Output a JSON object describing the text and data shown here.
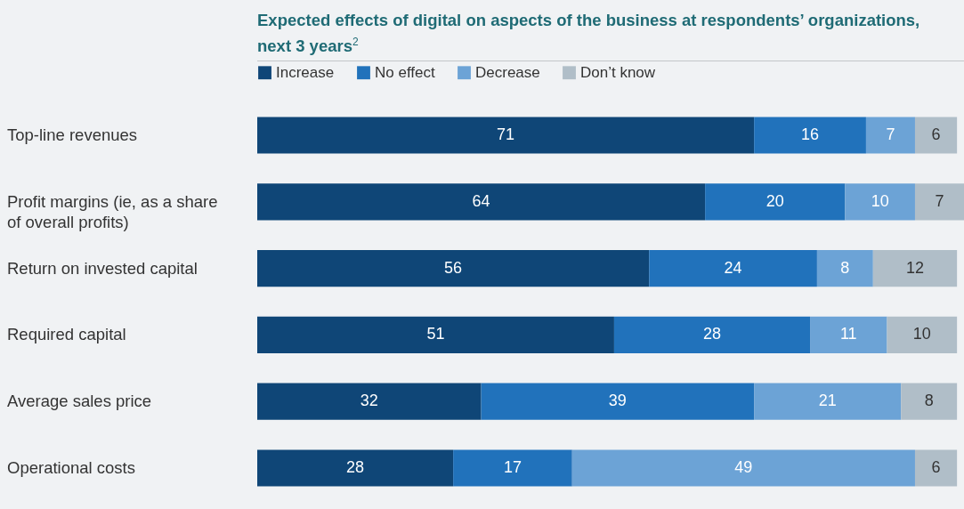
{
  "chart_data": {
    "type": "bar",
    "orientation": "horizontal",
    "stacked": true,
    "data_labels": true,
    "legend": "top left",
    "title": "Expected effects of digital on aspects of the business at respondents’ organizations, next 3 years$^{2}$",
    "categories": [
      "Top-line revenues",
      "Profit margins (ie, as a share of overall profits)",
      "Return on invested capital",
      "Required capital",
      "Average sales price",
      "Operational costs"
    ],
    "series": [
      {
        "name": "Increase",
        "color": "#0f4677",
        "values": [
          71,
          64,
          56,
          51,
          32,
          28
        ]
      },
      {
        "name": "No effect",
        "color": "#2172bb",
        "values": [
          16,
          20,
          24,
          28,
          39,
          17
        ]
      },
      {
        "name": "Decrease",
        "color": "#6ca3d6",
        "values": [
          7,
          10,
          8,
          11,
          21,
          49
        ]
      },
      {
        "name": "Don’t know",
        "color": "#b0bec8",
        "values": [
          6,
          7,
          12,
          10,
          8,
          6
        ]
      }
    ]
  }
}
